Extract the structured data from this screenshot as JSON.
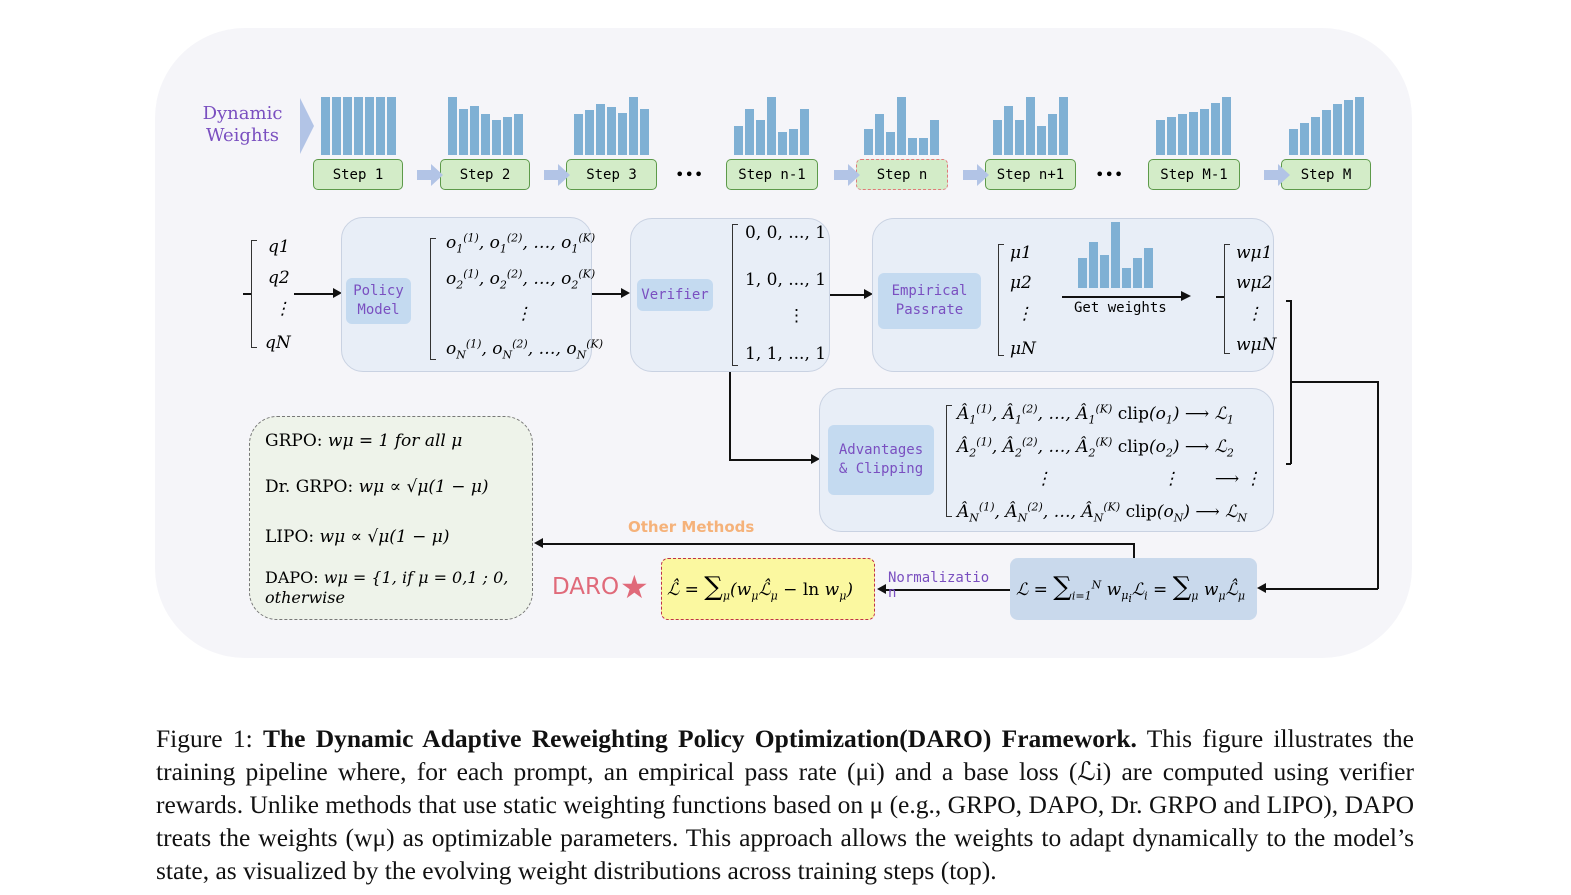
{
  "figure": {
    "dynamic_weights_label": "Dynamic Weights",
    "steps": [
      {
        "label": "Step 1",
        "weights": [
          1,
          1,
          1,
          1,
          1,
          1,
          1
        ]
      },
      {
        "label": "Step 2",
        "weights": [
          1,
          0.8,
          0.85,
          0.7,
          0.6,
          0.65,
          0.7
        ]
      },
      {
        "label": "Step 3",
        "weights": [
          0.7,
          0.78,
          0.88,
          0.82,
          0.72,
          1,
          0.8
        ]
      },
      {
        "label": "Step n-1",
        "weights": [
          0.5,
          0.8,
          0.6,
          1,
          0.4,
          0.45,
          0.8
        ]
      },
      {
        "label": "Step n",
        "weights": [
          0.45,
          0.7,
          0.4,
          1,
          0.3,
          0.3,
          0.6
        ],
        "highlighted": true
      },
      {
        "label": "Step n+1",
        "weights": [
          0.6,
          0.85,
          0.6,
          1,
          0.5,
          0.7,
          1
        ]
      },
      {
        "label": "Step M-1",
        "weights": [
          0.6,
          0.65,
          0.7,
          0.75,
          0.8,
          0.9,
          1
        ]
      },
      {
        "label": "Step M",
        "weights": [
          0.45,
          0.55,
          0.65,
          0.78,
          0.88,
          0.95,
          1
        ]
      }
    ],
    "ellipsis": "•••",
    "prompts": [
      "q1",
      "q2",
      "⋮",
      "qN"
    ],
    "policy_model": "Policy Model",
    "verifier": "Verifier",
    "verifier_rows": [
      "0, 0, ..., 1",
      "1, 0, ..., 1",
      "⋮",
      "1, 1, ..., 1"
    ],
    "empirical_passrate": "Empirical Passrate",
    "passrates": [
      "μ1",
      "μ2",
      "⋮",
      "μN"
    ],
    "get_weights": "Get weights",
    "get_weights_bars": [
      0.45,
      0.7,
      0.5,
      1,
      0.3,
      0.45,
      0.6
    ],
    "weights": [
      "wμ1",
      "wμ2",
      "⋮",
      "wμN"
    ],
    "advantages": "Advantages & Clipping",
    "other_methods": "Other Methods",
    "normalization": "Normalizatio n",
    "daro": "DARO",
    "methods": [
      {
        "name": "GRPO:",
        "formula": "wμ = 1 for all μ"
      },
      {
        "name": "Dr. GRPO:",
        "formula": "wμ ∝ √μ(1 − μ)"
      },
      {
        "name": "LIPO:",
        "formula": "wμ ∝ √μ(1 − μ)"
      },
      {
        "name": "DAPO:",
        "formula": "wμ = {1, if μ = 0,1 ; 0, otherwise"
      }
    ],
    "colors": {
      "bar": "#7fb0d4",
      "step_fill": "#d3ecc8",
      "label_text": "#7a4fc0",
      "daro": "#e06a7a",
      "other_methods": "#f5b27a",
      "daro_box": "#fbf8a0"
    }
  },
  "caption": {
    "prefix": "Figure 1: ",
    "title": "The Dynamic Adaptive Reweighting Policy Optimization(DARO) Framework.",
    "body": " This figure illustrates the training pipeline where, for each prompt, an empirical pass rate (μi) and a base loss (ℒi) are computed using verifier rewards. Unlike methods that use static weighting functions based on μ (e.g., GRPO, DAPO, Dr. GRPO and LIPO), DAPO treats the weights (wμ) as optimizable parameters. This approach allows the weights to adapt dynamically to the model’s state, as visualized by the evolving weight distributions across training steps (top)."
  }
}
